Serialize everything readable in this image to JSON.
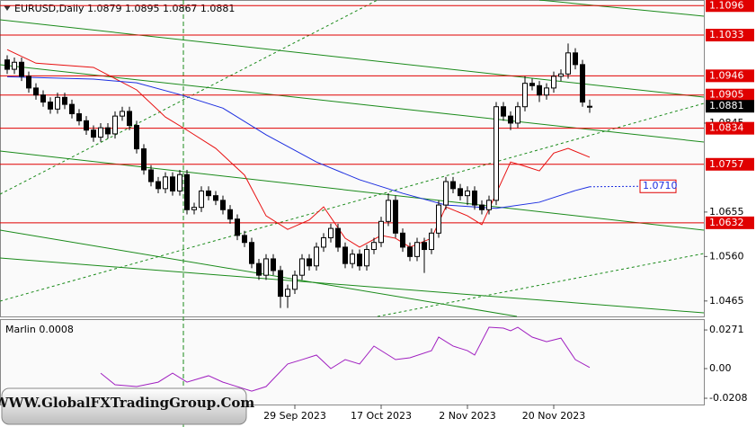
{
  "chart_data": [
    {
      "type": "candlestick",
      "title": "EURUSD,Daily 1.0879 1.0895 1.0867 1.0881",
      "categories": [
        null,
        null,
        null,
        null,
        null,
        null,
        null,
        null,
        null,
        null,
        null,
        null,
        null,
        null,
        null,
        null,
        null,
        null,
        null,
        null,
        null,
        null,
        null,
        null,
        null,
        null,
        null,
        null,
        null,
        null,
        null,
        null,
        null,
        null,
        null,
        null,
        null,
        null,
        null,
        null,
        "29 Sep 2023",
        null,
        null,
        null,
        null,
        null,
        null,
        null,
        null,
        null,
        null,
        null,
        "17 Oct 2023",
        null,
        null,
        null,
        null,
        null,
        null,
        null,
        null,
        null,
        null,
        null,
        "2 Nov 2023",
        null,
        null,
        null,
        null,
        null,
        null,
        null,
        null,
        null,
        null,
        null,
        "20 Nov 2023",
        null,
        null,
        null,
        null,
        null
      ],
      "open": [
        1.098,
        1.096,
        1.0975,
        1.0945,
        1.092,
        1.0905,
        1.089,
        1.0875,
        1.09,
        1.0885,
        1.0865,
        1.085,
        1.083,
        1.0815,
        1.0835,
        1.0822,
        1.086,
        1.087,
        1.084,
        1.079,
        1.0745,
        1.072,
        1.0705,
        1.073,
        1.07,
        1.0735,
        1.066,
        1.0665,
        1.07,
        1.069,
        1.068,
        1.066,
        1.064,
        1.0605,
        1.059,
        1.0545,
        1.052,
        1.0555,
        1.053,
        1.0475,
        1.049,
        1.052,
        1.0555,
        1.054,
        1.058,
        1.06,
        1.062,
        1.058,
        1.0545,
        1.0565,
        1.054,
        1.0575,
        1.059,
        1.0635,
        1.068,
        1.061,
        1.058,
        1.056,
        1.059,
        1.0575,
        1.061,
        1.067,
        1.072,
        1.0705,
        1.069,
        1.07,
        1.067,
        1.066,
        1.068,
        1.088,
        1.086,
        1.0845,
        1.088,
        1.093,
        1.0925,
        1.0905,
        1.092,
        1.0945,
        1.095,
        1.0995,
        1.097,
        1.0879
      ],
      "high": [
        1.099,
        1.0985,
        1.0985,
        1.0955,
        1.093,
        1.0915,
        1.09,
        1.091,
        1.091,
        1.0895,
        1.0875,
        1.086,
        1.084,
        1.0845,
        1.0845,
        1.087,
        1.088,
        1.088,
        1.085,
        1.08,
        1.0755,
        1.073,
        1.074,
        1.074,
        1.0745,
        1.0745,
        1.0675,
        1.071,
        1.071,
        1.07,
        1.069,
        1.067,
        1.065,
        1.0615,
        1.06,
        1.0555,
        1.0565,
        1.0565,
        1.054,
        1.05,
        1.053,
        1.0565,
        1.0565,
        1.059,
        1.061,
        1.063,
        1.063,
        1.059,
        1.0575,
        1.0575,
        1.0585,
        1.06,
        1.0645,
        1.0695,
        1.069,
        1.062,
        1.059,
        1.06,
        1.06,
        1.062,
        1.068,
        1.073,
        1.073,
        1.0715,
        1.071,
        1.071,
        1.068,
        1.069,
        1.089,
        1.089,
        1.087,
        1.089,
        1.0945,
        1.094,
        1.0935,
        1.093,
        1.0955,
        1.096,
        1.1015,
        1.1005,
        1.098,
        1.0895
      ],
      "low": [
        1.095,
        1.095,
        1.0935,
        1.091,
        1.0895,
        1.088,
        1.0865,
        1.0865,
        1.0875,
        1.0855,
        1.084,
        1.082,
        1.0805,
        1.0805,
        1.0812,
        1.0812,
        1.085,
        1.083,
        1.078,
        1.0735,
        1.071,
        1.0695,
        1.0695,
        1.069,
        1.069,
        1.065,
        1.065,
        1.0655,
        1.068,
        1.067,
        1.065,
        1.063,
        1.0595,
        1.058,
        1.0535,
        1.051,
        1.051,
        1.052,
        1.045,
        1.045,
        1.048,
        1.051,
        1.053,
        1.053,
        1.057,
        1.059,
        1.057,
        1.0535,
        1.0535,
        1.053,
        1.053,
        1.0565,
        1.058,
        1.0625,
        1.06,
        1.057,
        1.055,
        1.055,
        1.0525,
        1.0565,
        1.06,
        1.066,
        1.0695,
        1.068,
        1.067,
        1.066,
        1.065,
        1.065,
        1.067,
        1.085,
        1.083,
        1.0835,
        1.087,
        1.0915,
        1.089,
        1.0895,
        1.091,
        1.0935,
        1.094,
        1.096,
        1.088,
        1.0867
      ],
      "close": [
        1.096,
        1.0975,
        1.0945,
        1.092,
        1.0905,
        1.089,
        1.0875,
        1.09,
        1.0885,
        1.0865,
        1.085,
        1.083,
        1.0815,
        1.0835,
        1.0822,
        1.086,
        1.087,
        1.084,
        1.079,
        1.0745,
        1.072,
        1.0705,
        1.073,
        1.07,
        1.0735,
        1.066,
        1.0665,
        1.07,
        1.069,
        1.068,
        1.066,
        1.064,
        1.0605,
        1.059,
        1.0545,
        1.052,
        1.0555,
        1.053,
        1.0475,
        1.049,
        1.052,
        1.0555,
        1.054,
        1.058,
        1.06,
        1.062,
        1.058,
        1.0545,
        1.0565,
        1.054,
        1.0575,
        1.059,
        1.0635,
        1.068,
        1.061,
        1.058,
        1.056,
        1.059,
        1.0575,
        1.061,
        1.067,
        1.072,
        1.0705,
        1.069,
        1.07,
        1.067,
        1.066,
        1.068,
        1.088,
        1.086,
        1.0845,
        1.088,
        1.093,
        1.0925,
        1.0905,
        1.092,
        1.0945,
        1.095,
        1.0995,
        1.097,
        1.089,
        1.0881
      ],
      "lines": [
        {
          "color": "#e81010",
          "x": [
            0,
            4,
            12,
            18,
            22,
            25,
            29,
            33,
            36,
            39,
            42,
            44,
            47,
            49,
            52,
            54,
            56,
            59,
            61,
            64,
            66,
            68,
            70,
            72,
            74,
            76,
            78,
            81
          ],
          "values": [
            1.1002,
            1.0973,
            1.0964,
            1.0916,
            1.0858,
            1.083,
            1.0791,
            1.0734,
            1.0647,
            1.0618,
            1.0638,
            1.0666,
            1.0599,
            1.058,
            1.0605,
            1.0599,
            1.058,
            1.0599,
            1.0666,
            1.0647,
            1.0628,
            1.0695,
            1.0762,
            1.0753,
            1.0743,
            1.0781,
            1.0791,
            1.0772
          ]
        },
        {
          "color": "#1c2ee0",
          "x": [
            0,
            12,
            18,
            24,
            30,
            36,
            43,
            49,
            55,
            61,
            68,
            74,
            79,
            81
          ],
          "values": [
            1.0944,
            1.0939,
            1.0931,
            1.0906,
            1.0877,
            1.082,
            1.0762,
            1.0724,
            1.0695,
            1.067,
            1.0663,
            1.0676,
            1.0701,
            1.0709
          ]
        }
      ],
      "projection": {
        "x": 88,
        "value": 1.071,
        "label": "1.0710"
      },
      "levels": [
        1.1096,
        1.1033,
        1.0946,
        1.0905,
        1.0834,
        1.0757,
        1.0632
      ],
      "level_color": "#e00000",
      "ylim": [
        1.0432,
        1.1108
      ],
      "yticks": [
        1.0465,
        {
          "value": 1.056,
          "label": "1.0560"
        },
        1.0655,
        1.0845
      ]
    },
    {
      "type": "line",
      "title": "Marlin 0.0008",
      "color": "#a020c0",
      "x": [
        13,
        15,
        18,
        21,
        23,
        25,
        28,
        30,
        34,
        36,
        39,
        41,
        43,
        45,
        47,
        49,
        51,
        54,
        56,
        59,
        60,
        62,
        64,
        65,
        67,
        69,
        70,
        71,
        73,
        75,
        77,
        79,
        81
      ],
      "values": [
        -0.0032,
        -0.0113,
        -0.0126,
        -0.0095,
        -0.0032,
        -0.0095,
        -0.005,
        -0.0095,
        -0.0158,
        -0.0126,
        0.0032,
        0.0063,
        0.0095,
        0,
        0.0063,
        0.0032,
        0.0158,
        0.0063,
        0.0076,
        0.0126,
        0.0221,
        0.0158,
        0.0126,
        0.0095,
        0.029,
        0.0284,
        0.0265,
        0.029,
        0.0221,
        0.0189,
        0.0214,
        0.0063,
        0.0008
      ],
      "ylim": [
        -0.0252,
        0.0347
      ],
      "yticks": [
        0.0271,
        {
          "value": 0,
          "label": "0.00"
        },
        -0.0208
      ]
    }
  ],
  "watermark": "WWW.GlobalFXTradingGroup.Com"
}
